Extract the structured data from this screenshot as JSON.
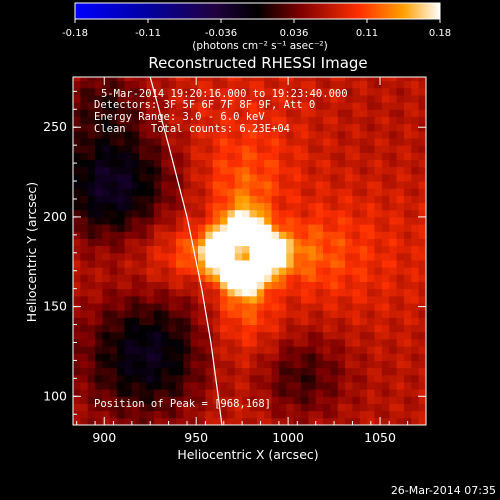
{
  "chart_data": {
    "type": "heatmap",
    "title": "Reconstructed RHESSI Image",
    "xlabel": "Heliocentric X (arcsec)",
    "ylabel": "Heliocentric Y (arcsec)",
    "xlim": [
      883,
      1075
    ],
    "ylim": [
      84,
      278
    ],
    "x_ticks": [
      900,
      950,
      1000,
      1050
    ],
    "y_ticks": [
      100,
      150,
      200,
      250
    ],
    "colorbar": {
      "min": -0.18,
      "max": 0.18,
      "ticks": [
        "-0.18",
        "-0.11",
        "-0.036",
        "0.036",
        "0.11",
        "0.18"
      ],
      "unit_label": "(photons cm⁻² s⁻¹ asec⁻²)"
    },
    "annotations": {
      "time_range": "5-Mar-2014 19:20:16.000 to 19:23:40.000",
      "detectors": "Detectors: 3F 5F 6F 7F 8F 9F, Att 0",
      "energy_range": "Energy Range: 3.0 - 6.0 keV",
      "clean_counts": "Clean    Total counts: 6.23E+04",
      "peak_position": "Position of Peak = [968,168]"
    },
    "peak": {
      "x": 968,
      "y": 168
    },
    "source": {
      "x": 976,
      "y": 180,
      "ring_radius": 12,
      "peak_value": 0.18
    },
    "limb_curve": [
      [
        925,
        278
      ],
      [
        935,
        240
      ],
      [
        945,
        200
      ],
      [
        953,
        160
      ],
      [
        958,
        130
      ],
      [
        962,
        100
      ],
      [
        964,
        84
      ]
    ],
    "timestamp": "26-Mar-2014 07:35"
  }
}
